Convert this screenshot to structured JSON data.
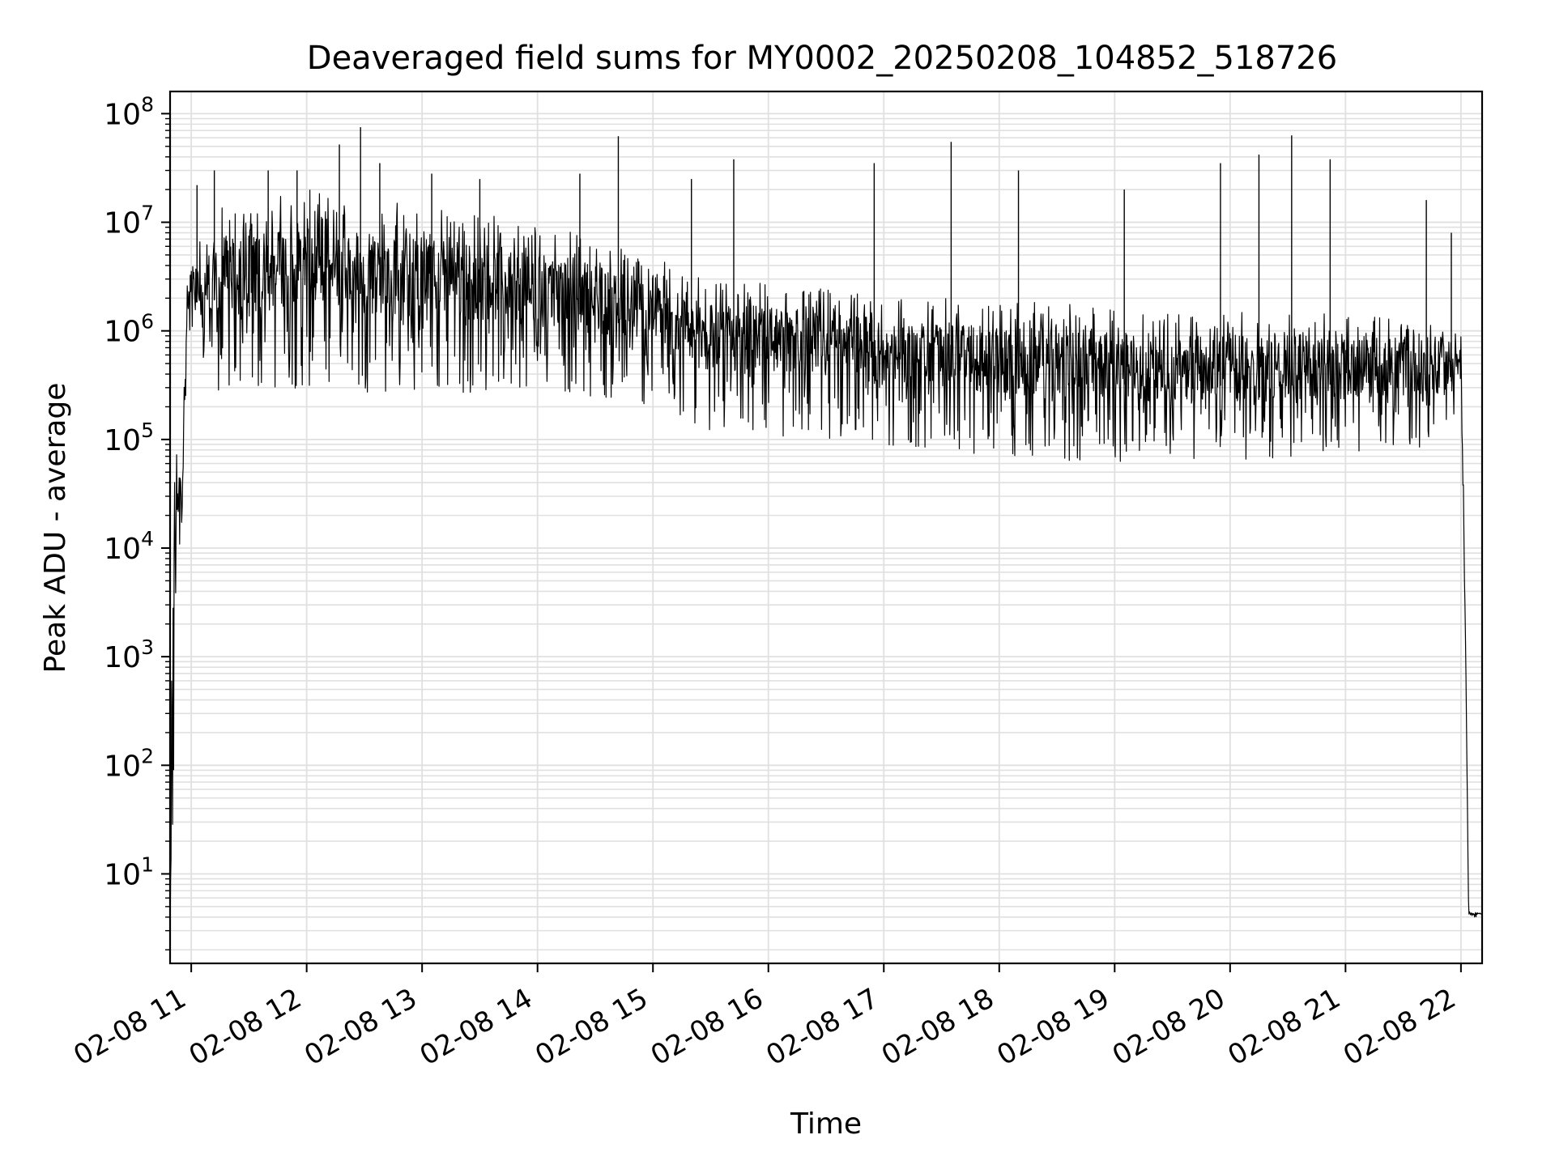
{
  "chart_data": {
    "type": "line",
    "title": "Deaveraged field sums for MY0002_20250208_104852_518726",
    "xlabel": "Time",
    "ylabel": "Peak ADU - average",
    "yscale": "log",
    "ylim": [
      1.5,
      160000000
    ],
    "xlim": [
      "2025-02-08 10:49",
      "2025-02-08 22:11"
    ],
    "grid": true,
    "grid_minor": true,
    "line_color": "#000000",
    "grid_color": "#e0e0e0",
    "x_ticks": [
      "2025-02-08 11:00",
      "2025-02-08 12:00",
      "2025-02-08 13:00",
      "2025-02-08 14:00",
      "2025-02-08 15:00",
      "2025-02-08 16:00",
      "2025-02-08 17:00",
      "2025-02-08 18:00",
      "2025-02-08 19:00",
      "2025-02-08 20:00",
      "2025-02-08 21:00",
      "2025-02-08 22:00"
    ],
    "x_tick_labels": [
      "02-08 11",
      "02-08 12",
      "02-08 13",
      "02-08 14",
      "02-08 15",
      "02-08 16",
      "02-08 17",
      "02-08 18",
      "02-08 19",
      "02-08 20",
      "02-08 21",
      "02-08 22"
    ],
    "y_ticks": [
      10,
      100,
      1000,
      10000,
      100000,
      1000000,
      10000000,
      100000000
    ],
    "y_tick_labels": [
      {
        "base": "10",
        "exp": "1"
      },
      {
        "base": "10",
        "exp": "2"
      },
      {
        "base": "10",
        "exp": "3"
      },
      {
        "base": "10",
        "exp": "4"
      },
      {
        "base": "10",
        "exp": "5"
      },
      {
        "base": "10",
        "exp": "6"
      },
      {
        "base": "10",
        "exp": "7"
      },
      {
        "base": "10",
        "exp": "8"
      }
    ],
    "series": [
      {
        "envelope": [
          {
            "t": "2025-02-08 10:49",
            "lo": 2,
            "hi": 2
          },
          {
            "t": "2025-02-08 10:50",
            "lo": 1.5,
            "hi": 20000
          },
          {
            "t": "2025-02-08 10:52",
            "lo": 2400,
            "hi": 90000
          },
          {
            "t": "2025-02-08 10:55",
            "lo": 15000,
            "hi": 60000
          },
          {
            "t": "2025-02-08 10:58",
            "lo": 800000,
            "hi": 4000000
          },
          {
            "t": "2025-02-08 11:15",
            "lo": 250000,
            "hi": 15000000
          },
          {
            "t": "2025-02-08 12:00",
            "lo": 300000,
            "hi": 20000000
          },
          {
            "t": "2025-02-08 13:00",
            "lo": 250000,
            "hi": 15000000
          },
          {
            "t": "2025-02-08 14:00",
            "lo": 300000,
            "hi": 10000000
          },
          {
            "t": "2025-02-08 15:00",
            "lo": 200000,
            "hi": 5000000
          },
          {
            "t": "2025-02-08 15:30",
            "lo": 120000,
            "hi": 3000000
          },
          {
            "t": "2025-02-08 16:30",
            "lo": 100000,
            "hi": 2500000
          },
          {
            "t": "2025-02-08 17:30",
            "lo": 80000,
            "hi": 2000000
          },
          {
            "t": "2025-02-08 18:30",
            "lo": 60000,
            "hi": 1800000
          },
          {
            "t": "2025-02-08 19:30",
            "lo": 65000,
            "hi": 1500000
          },
          {
            "t": "2025-02-08 20:30",
            "lo": 65000,
            "hi": 1500000
          },
          {
            "t": "2025-02-08 21:55",
            "lo": 90000,
            "hi": 1300000
          },
          {
            "t": "2025-02-08 22:00",
            "lo": 350000,
            "hi": 1100000
          },
          {
            "t": "2025-02-08 22:02",
            "lo": 1000,
            "hi": 10000
          },
          {
            "t": "2025-02-08 22:04",
            "lo": 4,
            "hi": 4.5
          },
          {
            "t": "2025-02-08 22:11",
            "lo": 4,
            "hi": 4.5
          }
        ],
        "spikes": [
          {
            "t": "2025-02-08 11:03",
            "value": 22000000
          },
          {
            "t": "2025-02-08 11:12",
            "value": 30000000
          },
          {
            "t": "2025-02-08 11:40",
            "value": 30000000
          },
          {
            "t": "2025-02-08 11:55",
            "value": 30000000
          },
          {
            "t": "2025-02-08 12:17",
            "value": 52000000
          },
          {
            "t": "2025-02-08 12:28",
            "value": 75000000
          },
          {
            "t": "2025-02-08 12:38",
            "value": 35000000
          },
          {
            "t": "2025-02-08 13:05",
            "value": 28000000
          },
          {
            "t": "2025-02-08 13:30",
            "value": 25000000
          },
          {
            "t": "2025-02-08 14:22",
            "value": 28000000
          },
          {
            "t": "2025-02-08 14:42",
            "value": 62000000
          },
          {
            "t": "2025-02-08 15:20",
            "value": 25000000
          },
          {
            "t": "2025-02-08 15:42",
            "value": 38000000
          },
          {
            "t": "2025-02-08 16:55",
            "value": 35000000
          },
          {
            "t": "2025-02-08 17:35",
            "value": 55000000
          },
          {
            "t": "2025-02-08 18:10",
            "value": 30000000
          },
          {
            "t": "2025-02-08 19:05",
            "value": 20000000
          },
          {
            "t": "2025-02-08 19:55",
            "value": 35000000
          },
          {
            "t": "2025-02-08 20:15",
            "value": 42000000
          },
          {
            "t": "2025-02-08 20:32",
            "value": 63000000
          },
          {
            "t": "2025-02-08 20:52",
            "value": 38000000
          },
          {
            "t": "2025-02-08 21:42",
            "value": 16000000
          },
          {
            "t": "2025-02-08 21:55",
            "value": 8000000
          }
        ]
      }
    ]
  }
}
